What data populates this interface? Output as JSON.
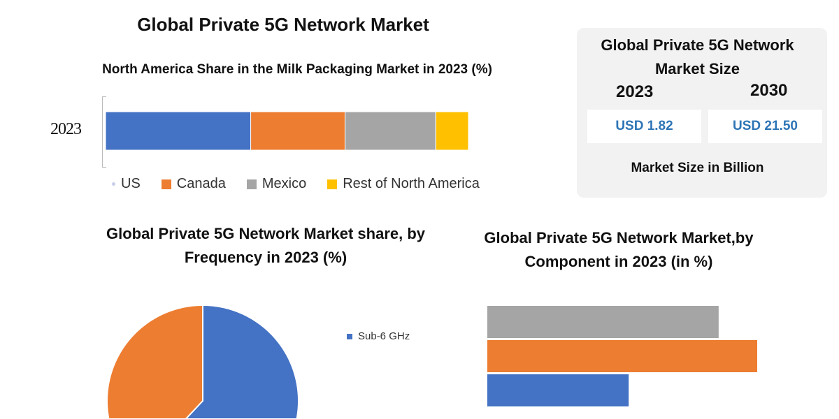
{
  "main_title": "Global Private 5G Network Market",
  "colors": {
    "blue": "#4472c4",
    "orange": "#ed7d31",
    "gray": "#a5a5a5",
    "yellow": "#ffc000",
    "value_text": "#2e75b6",
    "box_bg": "#f2f2f2"
  },
  "market_size": {
    "title": "Global Private 5G Network Market Size",
    "years": [
      "2023",
      "2030"
    ],
    "values": [
      "USD 1.82",
      "USD 21.50"
    ],
    "unit": "Market Size in Billion"
  },
  "chart_data": [
    {
      "type": "bar",
      "orientation": "horizontal-stacked",
      "title": "North America Share in the Milk Packaging Market in 2023 (%)",
      "categories": [
        "2023"
      ],
      "series": [
        {
          "name": "US",
          "values": [
            40
          ],
          "color": "#4472c4"
        },
        {
          "name": "Canada",
          "values": [
            26
          ],
          "color": "#ed7d31"
        },
        {
          "name": "Mexico",
          "values": [
            25
          ],
          "color": "#a5a5a5"
        },
        {
          "name": "Rest of North America",
          "values": [
            9
          ],
          "color": "#ffc000"
        }
      ],
      "legend": "bottom",
      "grid": false
    },
    {
      "type": "pie",
      "title": "Global Private 5G Network Market share, by Frequency in 2023  (%)",
      "slices": [
        {
          "label": "Sub-6 GHz",
          "value": 62,
          "color": "#4472c4"
        },
        {
          "value": 38,
          "color": "#ed7d31"
        }
      ],
      "legend": "right"
    },
    {
      "type": "bar",
      "orientation": "horizontal",
      "title": "Global Private 5G Network Market,by Component in 2023 (in %)",
      "values": [
        36,
        42,
        22
      ],
      "colors": [
        "#a5a5a5",
        "#ed7d31",
        "#4472c4"
      ],
      "grid": false
    }
  ]
}
